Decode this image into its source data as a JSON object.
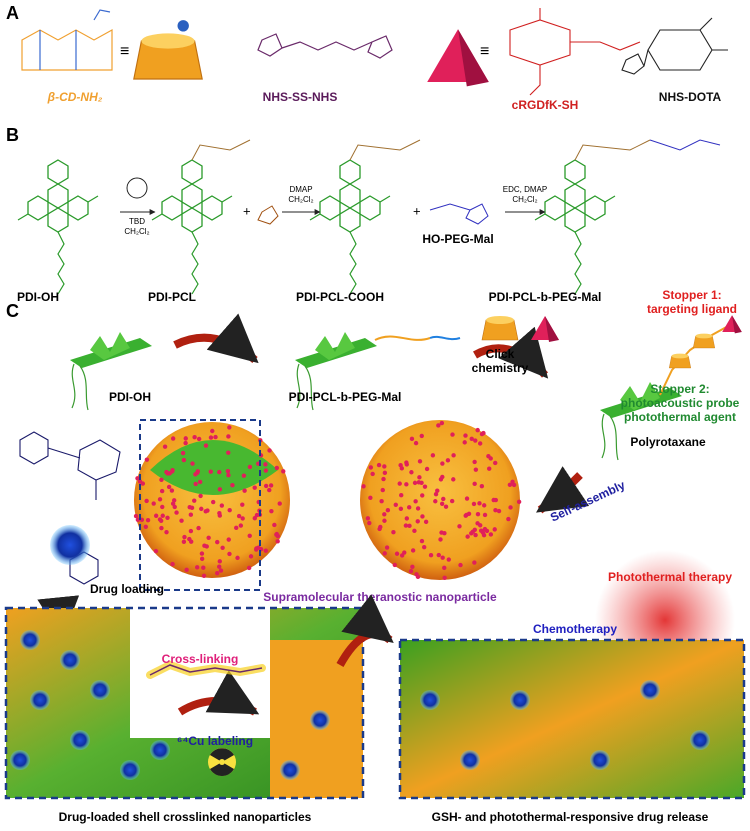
{
  "panel_a": {
    "label": "A",
    "compounds": [
      "β-CD-NH₂",
      "NHS-SS-NHS",
      "cRGDfK-SH",
      "NHS-DOTA"
    ]
  },
  "panel_b": {
    "label": "B",
    "compounds": [
      "PDI-OH",
      "PDI-PCL",
      "PDI-PCL-COOH",
      "HO-PEG-Mal",
      "PDI-PCL-b-PEG-Mal"
    ],
    "reagents": [
      [
        "TBD",
        "CH₂Cl₂"
      ],
      [
        "DMAP",
        "CH₂Cl₂"
      ],
      [
        "EDC, DMAP",
        "CH₂Cl₂"
      ]
    ],
    "plus": "+"
  },
  "panel_c": {
    "label": "C",
    "molecules": [
      "PDI-OH",
      "PDI-PCL-b-PEG-Mal",
      "Polyrotaxane"
    ],
    "click": [
      "Click",
      "chemistry"
    ],
    "stopper_1": [
      "Stopper 1:",
      "targeting ligand"
    ],
    "stopper_2": [
      "Stopper 2:",
      "photoacoustic probe",
      "photothermal agent"
    ],
    "self_assembly": "Self-assembly",
    "drug_loading": "Drug loading",
    "nanoparticle": "Supramolecular theranostic nanoparticle",
    "photothermal": "Photothermal therapy",
    "cross_linking": "Cross-linking",
    "chemotherapy": "Chemotherapy",
    "cu_labeling": "⁶⁴Cu labeling",
    "caption_left": "Drug-loaded shell crosslinked nanoparticles",
    "caption_right": "GSH- and photothermal-responsive drug release"
  }
}
